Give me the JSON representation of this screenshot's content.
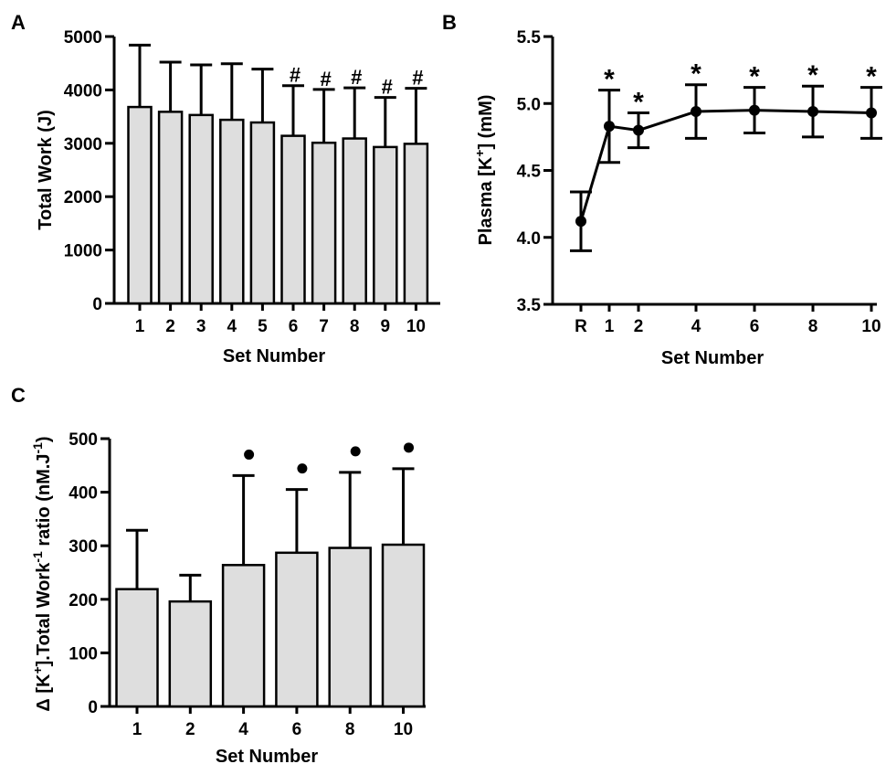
{
  "panels": {
    "A": "A",
    "B": "B",
    "C": "C"
  },
  "chart_data": [
    {
      "id": "A",
      "type": "bar",
      "title": "",
      "xlabel": "Set Number",
      "ylabel": "Total Work (J)",
      "ylim": [
        0,
        5000
      ],
      "yticks": [
        "0",
        "1000",
        "2000",
        "3000",
        "4000",
        "5000"
      ],
      "categories": [
        "1",
        "2",
        "3",
        "4",
        "5",
        "6",
        "7",
        "8",
        "9",
        "10"
      ],
      "values": [
        3680,
        3590,
        3530,
        3440,
        3390,
        3140,
        3010,
        3090,
        2930,
        2990
      ],
      "error": [
        1160,
        930,
        940,
        1050,
        1000,
        940,
        1000,
        950,
        930,
        1040
      ],
      "markers": [
        "",
        "",
        "",
        "",
        "",
        "#",
        "#",
        "#",
        "#",
        "#"
      ],
      "bar_color": "#dedede"
    },
    {
      "id": "B",
      "type": "line",
      "title": "",
      "xlabel": "Set Number",
      "ylabel": "Plasma [K+] (mM)",
      "ylim": [
        3.5,
        5.5
      ],
      "yticks": [
        "3.5",
        "4.0",
        "4.5",
        "5.0",
        "5.5"
      ],
      "x_positions": [
        -1,
        1,
        2,
        4,
        6,
        8,
        10
      ],
      "x_labels": [
        "R",
        "1",
        "2",
        "4",
        "6",
        "8",
        "10"
      ],
      "values": [
        4.12,
        4.83,
        4.8,
        4.94,
        4.95,
        4.94,
        4.93
      ],
      "error": [
        0.22,
        0.27,
        0.13,
        0.2,
        0.17,
        0.19,
        0.19
      ],
      "markers": [
        "",
        "*",
        "*",
        "*",
        "*",
        "*",
        "*"
      ]
    },
    {
      "id": "C",
      "type": "bar",
      "title": "",
      "xlabel": "Set Number",
      "ylabel": "Δ [K+].Total Work-1 ratio (nM.J-1)",
      "ylim": [
        0,
        500
      ],
      "yticks": [
        "0",
        "100",
        "200",
        "300",
        "400",
        "500"
      ],
      "categories": [
        "1",
        "2",
        "4",
        "6",
        "8",
        "10"
      ],
      "values": [
        219,
        196,
        264,
        287,
        296,
        302
      ],
      "error": [
        110,
        49,
        167,
        118,
        141,
        142
      ],
      "markers": [
        "",
        "",
        "•",
        "•",
        "•",
        "•"
      ],
      "bar_color": "#dedede"
    }
  ]
}
